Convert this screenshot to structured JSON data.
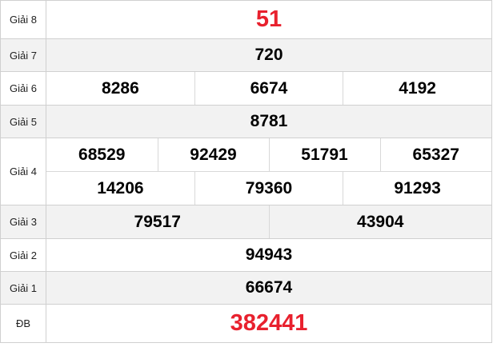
{
  "colors": {
    "special": "#e8212e",
    "alt_row": "#f2f2f2",
    "border": "#d0d0d0"
  },
  "prizes": [
    {
      "label": "Giải 8",
      "numbers": [
        "51"
      ]
    },
    {
      "label": "Giải 7",
      "numbers": [
        "720"
      ]
    },
    {
      "label": "Giải 6",
      "numbers": [
        "8286",
        "6674",
        "4192"
      ]
    },
    {
      "label": "Giải 5",
      "numbers": [
        "8781"
      ]
    },
    {
      "label": "Giải 4",
      "numbers": [
        "68529",
        "92429",
        "51791",
        "65327",
        "14206",
        "79360",
        "91293"
      ]
    },
    {
      "label": "Giải 3",
      "numbers": [
        "79517",
        "43904"
      ]
    },
    {
      "label": "Giải 2",
      "numbers": [
        "94943"
      ]
    },
    {
      "label": "Giải 1",
      "numbers": [
        "66674"
      ]
    },
    {
      "label": "ĐB",
      "numbers": [
        "382441"
      ]
    }
  ]
}
